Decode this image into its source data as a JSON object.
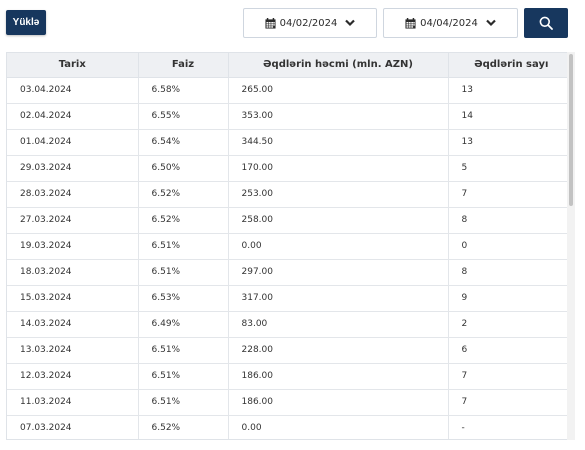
{
  "toolbar": {
    "download_label": "Yüklə",
    "date_from": "04/02/2024",
    "date_to": "04/04/2024",
    "accent_color": "#17375e"
  },
  "table": {
    "headers": [
      "Tarix",
      "Faiz",
      "Əqdlərin həcmi (mln. AZN)",
      "Əqdlərin sayı"
    ],
    "rows": [
      [
        "03.04.2024",
        "6.58%",
        "265.00",
        "13"
      ],
      [
        "02.04.2024",
        "6.55%",
        "353.00",
        "14"
      ],
      [
        "01.04.2024",
        "6.54%",
        "344.50",
        "13"
      ],
      [
        "29.03.2024",
        "6.50%",
        "170.00",
        "5"
      ],
      [
        "28.03.2024",
        "6.52%",
        "253.00",
        "7"
      ],
      [
        "27.03.2024",
        "6.52%",
        "258.00",
        "8"
      ],
      [
        "19.03.2024",
        "6.51%",
        "0.00",
        "0"
      ],
      [
        "18.03.2024",
        "6.51%",
        "297.00",
        "8"
      ],
      [
        "15.03.2024",
        "6.53%",
        "317.00",
        "9"
      ],
      [
        "14.03.2024",
        "6.49%",
        "83.00",
        "2"
      ],
      [
        "13.03.2024",
        "6.51%",
        "228.00",
        "6"
      ],
      [
        "12.03.2024",
        "6.51%",
        "186.00",
        "7"
      ],
      [
        "11.03.2024",
        "6.51%",
        "186.00",
        "7"
      ],
      [
        "07.03.2024",
        "6.52%",
        "0.00",
        "-"
      ]
    ]
  }
}
